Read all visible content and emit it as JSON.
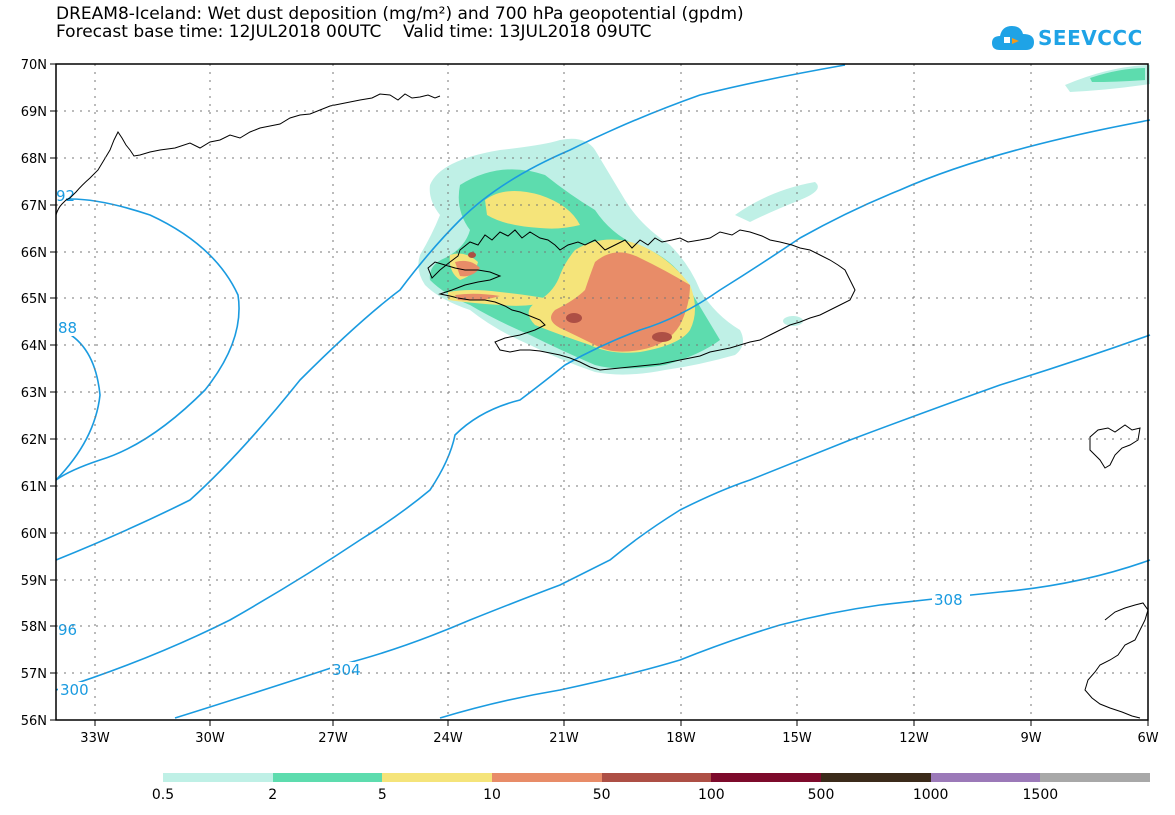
{
  "header": {
    "title_line1": "DREAM8-Iceland: Wet dust deposition (mg/m²) and 700 hPa geopotential (gpdm)",
    "title_line2": "Forecast base time: 12JUL2018 00UTC    Valid time: 13JUL2018 09UTC"
  },
  "logo": {
    "text": "SEEVCCC",
    "icon": "cloud-icon",
    "color": "#1fa3e6"
  },
  "map": {
    "lon_labels": [
      "33W",
      "30W",
      "27W",
      "24W",
      "21W",
      "18W",
      "15W",
      "12W",
      "9W",
      "6W"
    ],
    "lat_labels": [
      "70N",
      "69N",
      "68N",
      "67N",
      "66N",
      "65N",
      "64N",
      "63N",
      "62N",
      "61N",
      "60N",
      "59N",
      "58N",
      "57N",
      "56N"
    ],
    "contour_color": "#1a9be0",
    "coast_color": "#000000",
    "contour_labels": [
      "92",
      "88",
      "96",
      "300",
      "304",
      "308"
    ]
  },
  "legend": {
    "labels": [
      "0.5",
      "2",
      "5",
      "10",
      "50",
      "100",
      "500",
      "1000",
      "1500"
    ],
    "colors": [
      "#bff0e6",
      "#5ddcae",
      "#f5e47a",
      "#e88c68",
      "#ad4f45",
      "#7d0a2b",
      "#3b2a1a",
      "#9b79b8",
      "#a8a8a8"
    ]
  }
}
